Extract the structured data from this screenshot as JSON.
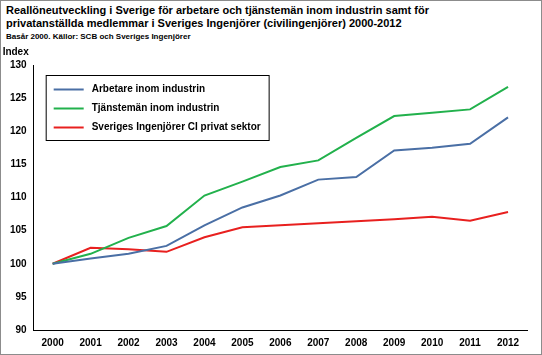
{
  "chart_data": {
    "type": "line",
    "title": "Reallöneutveckling i Sverige för arbetare och tjänstemän inom industrin samt för privatanställda medlemmar i Sveriges Ingenjörer (civilingenjörer) 2000-2012",
    "subtitle": "Basår 2000. Källor: SCB och Sveriges Ingenjörer",
    "y_label": "Index",
    "categories": [
      "2000",
      "2001",
      "2002",
      "2003",
      "2004",
      "2005",
      "2006",
      "2007",
      "2008",
      "2009",
      "2010",
      "2011",
      "2012"
    ],
    "series": [
      {
        "name": "Arbetare inom industrin",
        "color": "#4a6fa5",
        "values": [
          100,
          100.8,
          101.5,
          102.7,
          105.8,
          108.5,
          110.3,
          112.7,
          113.1,
          117.1,
          117.5,
          118.1,
          122.1
        ]
      },
      {
        "name": "Tjänstemän inom industrin",
        "color": "#22b14c",
        "values": [
          100,
          101.5,
          103.9,
          105.7,
          110.3,
          112.4,
          114.6,
          115.6,
          119.0,
          122.3,
          122.8,
          123.3,
          126.7
        ]
      },
      {
        "name": "Sveriges Ingenjörer CI privat sektor",
        "color": "#e8201f",
        "values": [
          100,
          102.4,
          102.2,
          101.8,
          104.0,
          105.5,
          105.8,
          106.1,
          106.4,
          106.7,
          107.1,
          106.5,
          107.8
        ]
      }
    ],
    "ylim": [
      90,
      130
    ],
    "yticks": [
      90,
      95,
      100,
      105,
      110,
      115,
      120,
      125,
      130
    ],
    "grid": false,
    "legend": "top-left"
  }
}
